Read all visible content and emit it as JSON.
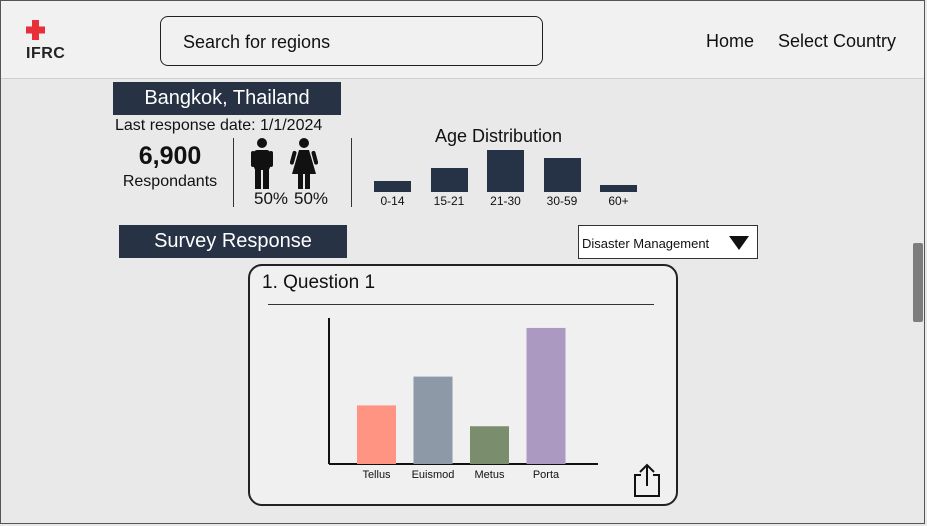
{
  "header": {
    "logo_text": "IFRC",
    "search_placeholder": "Search for regions",
    "nav": {
      "home": "Home",
      "select_country": "Select Country"
    }
  },
  "location": {
    "title": "Bangkok, Thailand",
    "last_response": "Last response date: 1/1/2024",
    "respondents_count": "6,900",
    "respondents_label": "Respondants",
    "male_pct": "50%",
    "female_pct": "50%"
  },
  "age_distribution": {
    "title": "Age Distribution",
    "categories": [
      "0-14",
      "15-21",
      "21-30",
      "30-59",
      "60+"
    ],
    "values": [
      1,
      2.2,
      3.8,
      3.1,
      0.6
    ]
  },
  "survey": {
    "title": "Survey Response",
    "dropdown_value": "Disaster Management",
    "question_title": "1. Question 1"
  },
  "chart_data": {
    "type": "bar",
    "categories": [
      "Tellus",
      "Euismod",
      "Metus",
      "Porta"
    ],
    "values": [
      59,
      88,
      38,
      137
    ],
    "colors": [
      "#ff9483",
      "#8d99a6",
      "#7a8d6d",
      "#ab99c2"
    ],
    "ylim": [
      0,
      147
    ]
  },
  "colors": {
    "dark_label": "#273245",
    "logo_red": "#e8303a"
  },
  "icons": {
    "share": "share-icon",
    "male": "male-icon",
    "female": "female-icon",
    "dropdown": "caret-down-icon"
  }
}
